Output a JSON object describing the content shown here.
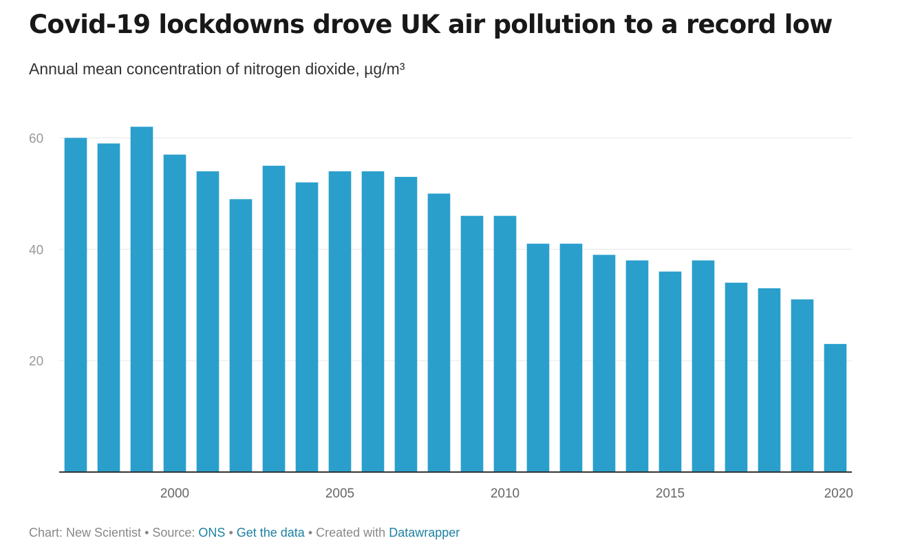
{
  "header": {
    "title": "Covid-19 lockdowns drove UK air pollution to a record low",
    "subtitle": "Annual mean concentration of nitrogen dioxide, µg/m³"
  },
  "colors": {
    "bar": "#2a9fcc",
    "grid": "#e6e6e6",
    "axis": "#333333",
    "tick_text": "#999999",
    "x_tick_text": "#666666",
    "link": "#1d81a2"
  },
  "chart_data": {
    "type": "bar",
    "title": "Covid-19 lockdowns drove UK air pollution to a record low",
    "subtitle": "Annual mean concentration of nitrogen dioxide, µg/m³",
    "xlabel": "",
    "ylabel": "",
    "categories": [
      1997,
      1998,
      1999,
      2000,
      2001,
      2002,
      2003,
      2004,
      2005,
      2006,
      2007,
      2008,
      2009,
      2010,
      2011,
      2012,
      2013,
      2014,
      2015,
      2016,
      2017,
      2018,
      2019,
      2020
    ],
    "values": [
      60,
      59,
      62,
      57,
      54,
      49,
      55,
      52,
      54,
      54,
      53,
      50,
      46,
      46,
      41,
      41,
      39,
      38,
      36,
      38,
      34,
      33,
      31,
      23
    ],
    "ylim": [
      0,
      64
    ],
    "y_ticks": [
      20,
      40,
      60
    ],
    "x_ticks": [
      2000,
      2005,
      2010,
      2015,
      2020
    ],
    "grid": true,
    "legend": "none"
  },
  "footer": {
    "chart_credit": "Chart: New Scientist",
    "sep1": " • ",
    "source_label": "Source: ",
    "source_link": "ONS",
    "sep2": " • ",
    "get_data_link": "Get the data",
    "sep3": " • ",
    "created_label": "Created with ",
    "datawrapper_link": "Datawrapper"
  }
}
